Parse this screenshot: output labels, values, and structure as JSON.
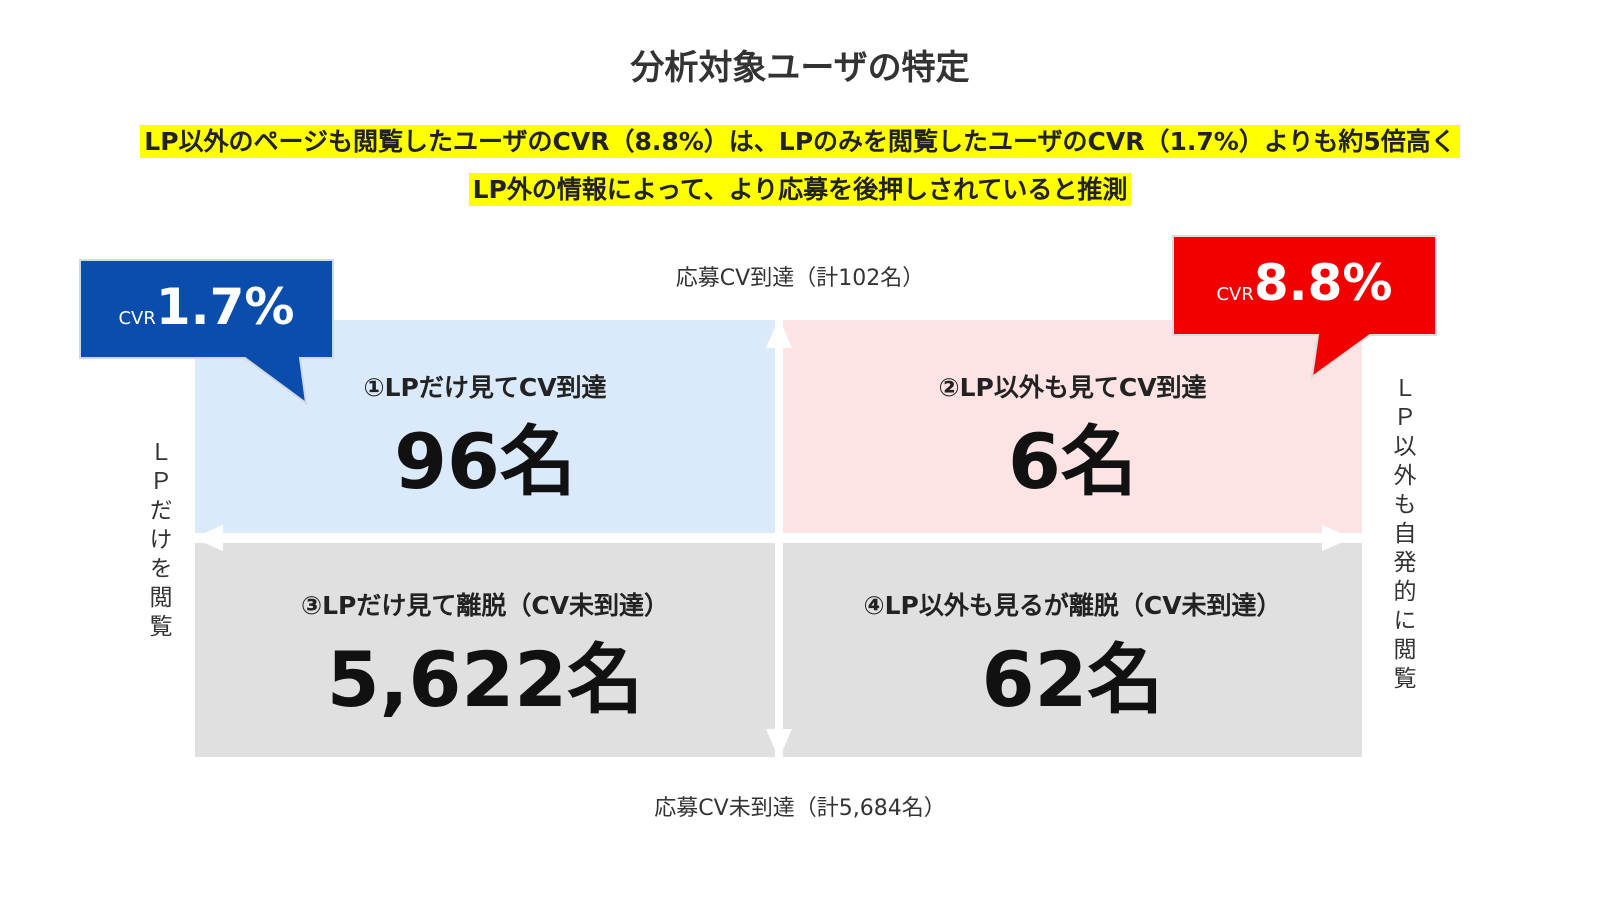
{
  "header": {
    "title": "分析対象ユーザの特定",
    "highlights": [
      "LP以外のページも閲覧したユーザのCVR（8.8%）は、LPのみを閲覧したユーザのCVR（1.7%）よりも約5倍高く",
      "LP外の情報によって、より応募を後押しされていると推測"
    ]
  },
  "axes": {
    "top": "応募CV到達（計102名）",
    "bottom": "応募CV未到達（計5,684名）",
    "left": "ＬＰだけを閲覧",
    "right": "ＬＰ以外も自発的に閲覧"
  },
  "quadrants": [
    {
      "label": "①LPだけ見てCV到達",
      "count": "96名"
    },
    {
      "label": "②LP以外も見てCV到達",
      "count": "6名"
    },
    {
      "label": "③LPだけ見て離脱（CV未到達）",
      "count": "5,622名"
    },
    {
      "label": "④LP以外も見るが離脱（CV未到達）",
      "count": "62名"
    }
  ],
  "callouts": [
    {
      "prefix": "CVR",
      "value": "1.7%"
    },
    {
      "prefix": "CVR",
      "value": "8.8%"
    }
  ]
}
